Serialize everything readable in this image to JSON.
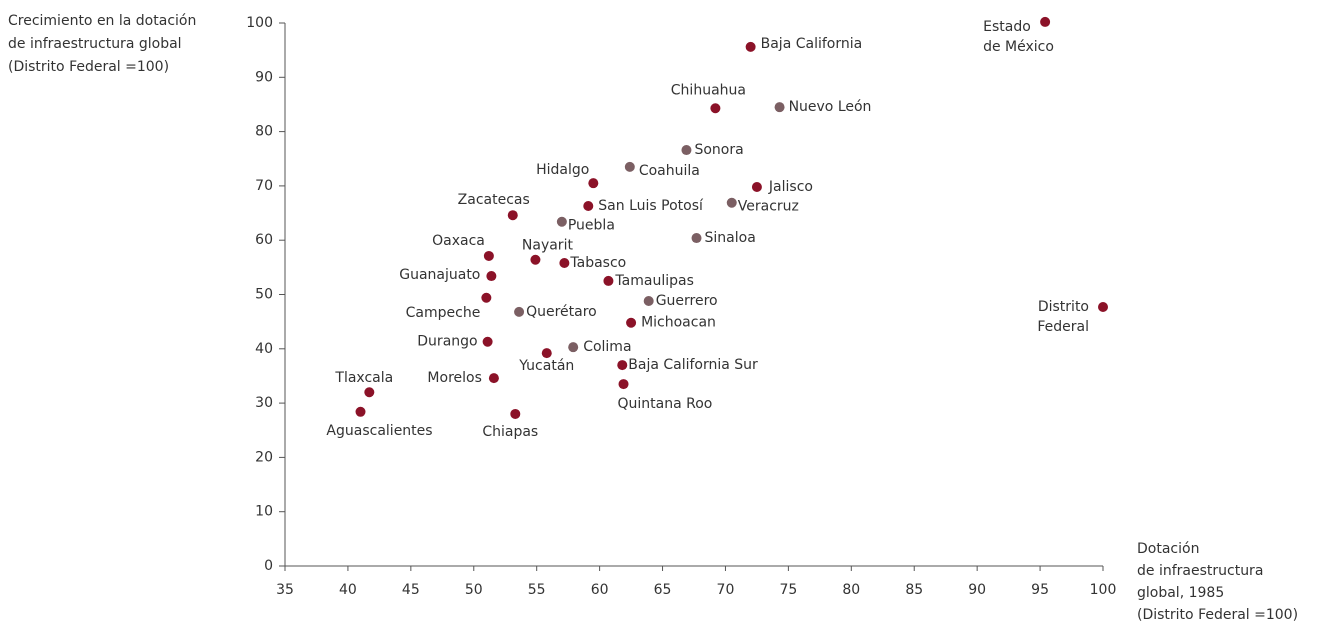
{
  "chart_data": {
    "type": "scatter",
    "y_label": [
      "Crecimiento en la dotación",
      "de infraestructura global",
      "(Distrito Federal =100)"
    ],
    "x_label": [
      "Dotación",
      "de infraestructura",
      "global, 1985",
      "(Distrito Federal =100)"
    ],
    "xlim": [
      35,
      100
    ],
    "xticks": [
      35,
      40,
      45,
      50,
      55,
      60,
      65,
      70,
      75,
      80,
      85,
      90,
      95,
      100
    ],
    "ylim": [
      0,
      100
    ],
    "yticks": [
      0,
      10,
      20,
      30,
      40,
      50,
      60,
      70,
      80,
      90,
      100
    ],
    "grid": false,
    "points": [
      {
        "label": [
          "Estado",
          "de México"
        ],
        "x": 95.4,
        "y": 100.2,
        "color": "#8b1228"
      },
      {
        "label": "Baja California",
        "x": 72.0,
        "y": 95.6,
        "color": "#8b1228"
      },
      {
        "label": "Chihuahua",
        "x": 69.2,
        "y": 84.3,
        "color": "#8b1228"
      },
      {
        "label": "Nuevo León",
        "x": 74.3,
        "y": 84.5,
        "color": "#7b5f63"
      },
      {
        "label": "Sonora",
        "x": 66.9,
        "y": 76.6,
        "color": "#7b5f63"
      },
      {
        "label": "Coahuila",
        "x": 62.4,
        "y": 73.5,
        "color": "#7b5f63"
      },
      {
        "label": "Hidalgo",
        "x": 59.5,
        "y": 70.5,
        "color": "#8b1228"
      },
      {
        "label": "Jalisco",
        "x": 72.5,
        "y": 69.8,
        "color": "#8b1228"
      },
      {
        "label": "Veracruz",
        "x": 70.5,
        "y": 66.9,
        "color": "#7b5f63"
      },
      {
        "label": "San Luis Potosí",
        "x": 59.1,
        "y": 66.3,
        "color": "#8b1228"
      },
      {
        "label": "Zacatecas",
        "x": 53.1,
        "y": 64.6,
        "color": "#8b1228"
      },
      {
        "label": "Puebla",
        "x": 57.0,
        "y": 63.4,
        "color": "#7b5f63"
      },
      {
        "label": "Sinaloa",
        "x": 67.7,
        "y": 60.4,
        "color": "#7b5f63"
      },
      {
        "label": "Oaxaca",
        "x": 51.2,
        "y": 57.1,
        "color": "#8b1228"
      },
      {
        "label": "Nayarit",
        "x": 54.9,
        "y": 56.4,
        "color": "#8b1228"
      },
      {
        "label": "Tabasco",
        "x": 57.2,
        "y": 55.8,
        "color": "#8b1228"
      },
      {
        "label": "Guanajuato",
        "x": 51.4,
        "y": 53.4,
        "color": "#8b1228"
      },
      {
        "label": "Tamaulipas",
        "x": 60.7,
        "y": 52.5,
        "color": "#8b1228"
      },
      {
        "label": "Campeche",
        "x": 51.0,
        "y": 49.4,
        "color": "#8b1228"
      },
      {
        "label": "Guerrero",
        "x": 63.9,
        "y": 48.8,
        "color": "#7b5f63"
      },
      {
        "label": "Querétaro",
        "x": 53.6,
        "y": 46.8,
        "color": "#7b5f63"
      },
      {
        "label": "Michoacan",
        "x": 62.5,
        "y": 44.8,
        "color": "#8b1228"
      },
      {
        "label": [
          "Distrito",
          "Federal"
        ],
        "x": 100,
        "y": 47.7,
        "color": "#8b1228"
      },
      {
        "label": "Durango",
        "x": 51.1,
        "y": 41.3,
        "color": "#8b1228"
      },
      {
        "label": "Colima",
        "x": 57.9,
        "y": 40.3,
        "color": "#7b5f63"
      },
      {
        "label": "Yucatán",
        "x": 55.8,
        "y": 39.2,
        "color": "#8b1228"
      },
      {
        "label": "Baja California Sur",
        "x": 61.8,
        "y": 37.0,
        "color": "#8b1228"
      },
      {
        "label": "Morelos",
        "x": 51.6,
        "y": 34.6,
        "color": "#8b1228"
      },
      {
        "label": "Quintana Roo",
        "x": 61.9,
        "y": 33.5,
        "color": "#8b1228"
      },
      {
        "label": "Tlaxcala",
        "x": 41.7,
        "y": 32.0,
        "color": "#8b1228"
      },
      {
        "label": "Aguascalientes",
        "x": 41.0,
        "y": 28.4,
        "color": "#8b1228"
      },
      {
        "label": "Chiapas",
        "x": 53.3,
        "y": 28.0,
        "color": "#8b1228"
      }
    ]
  }
}
